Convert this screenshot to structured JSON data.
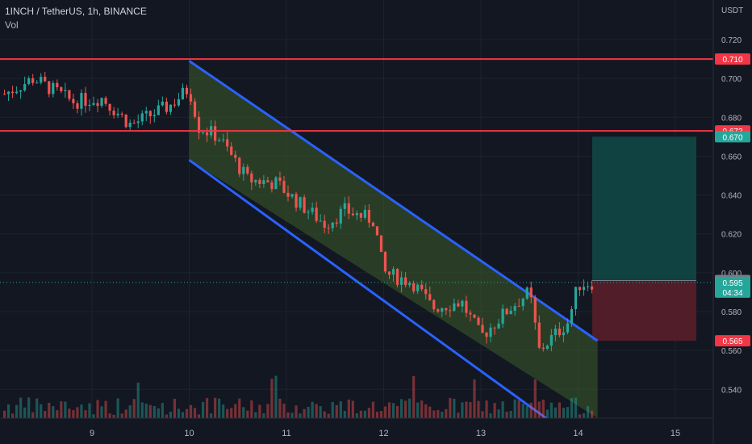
{
  "header": {
    "symbol": "1INCH / TetherUS, 1h, BINANCE",
    "indicator": "Vol"
  },
  "price_axis": {
    "unit": "USDT",
    "ticks": [
      "0.720",
      "0.700",
      "0.680",
      "0.660",
      "0.640",
      "0.620",
      "0.600",
      "0.580",
      "0.560",
      "0.540"
    ],
    "tick_values": [
      0.72,
      0.7,
      0.68,
      0.66,
      0.64,
      0.62,
      0.6,
      0.58,
      0.56,
      0.54
    ],
    "range": [
      0.526,
      0.733
    ]
  },
  "time_axis": {
    "ticks": [
      "9",
      "10",
      "11",
      "12",
      "13",
      "14",
      "15"
    ]
  },
  "levels": {
    "resistance_high": {
      "label": "0.710",
      "value": 0.71
    },
    "resistance_low": {
      "label": "0.673",
      "value": 0.673
    },
    "target": {
      "label": "0.670",
      "value": 0.67
    },
    "entry": {
      "label": "0.596",
      "value": 0.596
    },
    "current": {
      "label": "0.595",
      "value": 0.595,
      "countdown": "04:34"
    },
    "stop": {
      "label": "0.565",
      "value": 0.565
    }
  },
  "colors": {
    "background": "#131722",
    "up": "#26a69a",
    "down": "#ef5350",
    "channel_line": "#2962ff",
    "channel_fill": "#3d5c2a",
    "horizontal_line": "#f23645",
    "target_zone": "#0f4a45",
    "stop_zone": "#5c1f29",
    "axis_text": "#b2b5be",
    "grid": "#1e222d"
  },
  "chart_data": {
    "type": "candlestick",
    "timeframe": "1h",
    "channel": {
      "upper": [
        {
          "day": 10.0,
          "price": 0.709
        },
        {
          "day": 14.2,
          "price": 0.565
        }
      ],
      "lower": [
        {
          "day": 10.0,
          "price": 0.658
        },
        {
          "day": 14.2,
          "price": 0.506
        }
      ]
    },
    "anchors": [
      {
        "day": 8.1,
        "price": 0.692
      },
      {
        "day": 8.4,
        "price": 0.7
      },
      {
        "day": 8.8,
        "price": 0.688
      },
      {
        "day": 9.1,
        "price": 0.69
      },
      {
        "day": 9.4,
        "price": 0.676
      },
      {
        "day": 9.8,
        "price": 0.686
      },
      {
        "day": 10.0,
        "price": 0.695
      },
      {
        "day": 10.1,
        "price": 0.675
      },
      {
        "day": 10.3,
        "price": 0.67
      },
      {
        "day": 10.6,
        "price": 0.648
      },
      {
        "day": 10.9,
        "price": 0.646
      },
      {
        "day": 11.1,
        "price": 0.637
      },
      {
        "day": 11.4,
        "price": 0.625
      },
      {
        "day": 11.6,
        "price": 0.632
      },
      {
        "day": 11.9,
        "price": 0.627
      },
      {
        "day": 12.0,
        "price": 0.6
      },
      {
        "day": 12.3,
        "price": 0.595
      },
      {
        "day": 12.5,
        "price": 0.582
      },
      {
        "day": 12.8,
        "price": 0.585
      },
      {
        "day": 13.0,
        "price": 0.567
      },
      {
        "day": 13.3,
        "price": 0.582
      },
      {
        "day": 13.5,
        "price": 0.59
      },
      {
        "day": 13.6,
        "price": 0.56
      },
      {
        "day": 13.9,
        "price": 0.575
      },
      {
        "day": 14.0,
        "price": 0.594
      },
      {
        "day": 14.15,
        "price": 0.595
      }
    ]
  }
}
